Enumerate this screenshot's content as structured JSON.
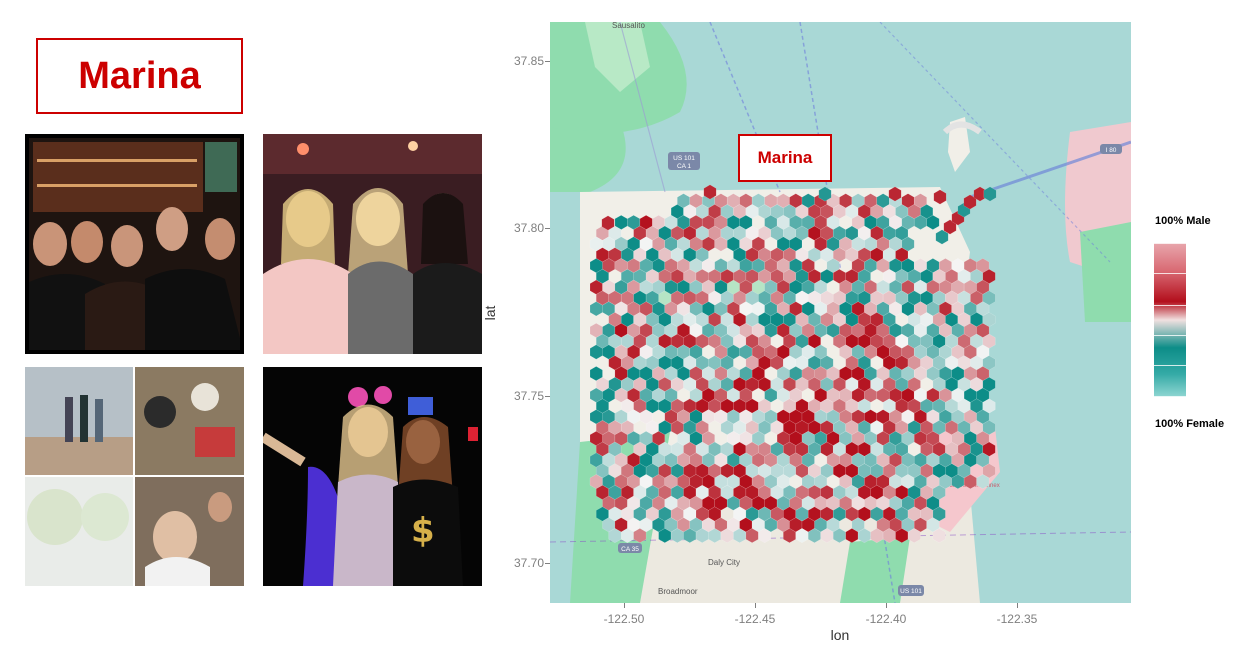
{
  "title": "Marina",
  "map_label": "Marina",
  "photos": [
    {
      "name": "bar-group-photo",
      "palette": [
        "#2c1a14",
        "#8a4c2b",
        "#d9a066",
        "#111111"
      ]
    },
    {
      "name": "three-women-photo",
      "palette": [
        "#3a1d22",
        "#c9a37e",
        "#e4c6a2",
        "#1b1b1b"
      ]
    },
    {
      "name": "collage-photo",
      "palette": [
        "#c9cfd6",
        "#6f5b4c",
        "#e8e0d2",
        "#2a2a2a"
      ]
    },
    {
      "name": "party-booth-photo",
      "palette": [
        "#050505",
        "#5a3bd1",
        "#c9b7c9",
        "#d6b04a"
      ]
    }
  ],
  "chart_data": {
    "type": "hexbin-map",
    "xlabel": "lon",
    "ylabel": "lat",
    "x_ticks": [
      -122.5,
      -122.45,
      -122.4,
      -122.35
    ],
    "x_tick_labels": [
      "-122.50",
      "-122.45",
      "-122.40",
      "-122.35"
    ],
    "y_ticks": [
      37.7,
      37.75,
      37.8,
      37.85
    ],
    "y_tick_labels": [
      "37.70",
      "37.75",
      "37.80",
      "37.85"
    ],
    "xlim": [
      -122.528,
      -122.328
    ],
    "ylim": [
      37.6935,
      37.8565
    ],
    "legend": {
      "top_label": "100% Male",
      "bottom_label": "100% Female",
      "placement": "right"
    },
    "colors": {
      "male": "#b30f1c",
      "female": "#0d8d88",
      "neutral": "#f5f5f5",
      "water": "#a9d8d6",
      "land": "#f1efe8",
      "park": "#8fdcae"
    },
    "map_places": [
      {
        "name": "Sausalito"
      },
      {
        "name": "Daly City"
      },
      {
        "name": "Broadmoor"
      },
      {
        "name": "Hunters Point Annex"
      }
    ],
    "highway_shields": [
      {
        "label": "US 101\nCA 1"
      },
      {
        "label": "I 80"
      },
      {
        "label": "US 101"
      },
      {
        "label": "CA 35"
      }
    ]
  }
}
